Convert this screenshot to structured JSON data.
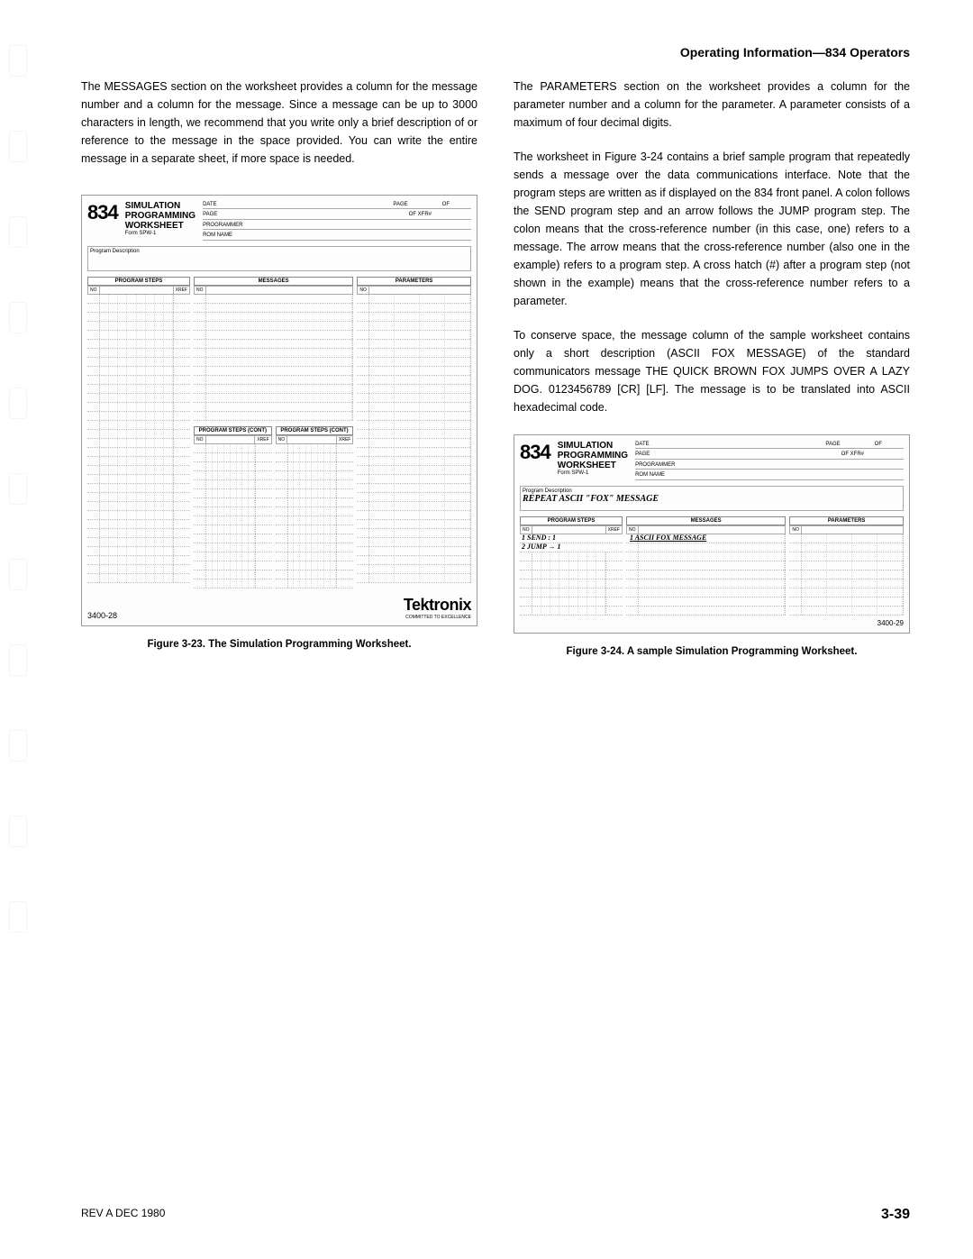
{
  "header": "Operating Information—834 Operators",
  "left_paragraphs": [
    "The MESSAGES section on the worksheet provides a column for the message number and a column for the message. Since a message can be up to 3000 characters in length, we recommend that you write only a brief description of or reference to the message in the space provided. You can write the entire message in a separate sheet, if more space is needed."
  ],
  "right_paragraphs": [
    "The PARAMETERS section on the worksheet provides a column for the parameter number and a column for the parameter. A parameter consists of a maximum of four decimal digits.",
    "The worksheet in Figure 3-24 contains a brief sample program that repeatedly sends a message over the data communications interface. Note that the program steps are written as if displayed on the 834 front panel. A colon follows the SEND program step and an arrow follows the JUMP program step. The colon means that the cross-reference number (in this case, one) refers to a message. The arrow means that the cross-reference number (also one in the example) refers to a program step. A cross hatch (#) after a program step (not shown in the example) means that the cross-reference number refers to a parameter.",
    "To conserve space, the message column of the sample worksheet contains only a short description (ASCII FOX MESSAGE) of the standard communicators message THE QUICK BROWN FOX JUMPS OVER A LAZY DOG. 0123456789 [CR] [LF]. The message is to be translated into ASCII hexadecimal code."
  ],
  "worksheet": {
    "model": "834",
    "title_lines": [
      "SIMULATION",
      "PROGRAMMING",
      "WORKSHEET"
    ],
    "form": "Form SPW-1",
    "meta_labels": {
      "date": "DATE",
      "page": "PAGE",
      "of": "OF",
      "page2": "PAGE",
      "ofxfr": "OF XFR#",
      "programmer": "PROGRAMMER",
      "romname": "ROM NAME"
    },
    "progdesc_label": "Program Description",
    "sections": {
      "steps": "PROGRAM STEPS",
      "messages": "MESSAGES",
      "params": "PARAMETERS",
      "steps_cont": "PROGRAM STEPS (CONT)",
      "no": "NO",
      "xref": "XREF"
    },
    "footer_num": "3400-28",
    "tek": "Tektronix",
    "tek_sub": "COMMITTED TO EXCELLENCE",
    "row_count_main": 32,
    "row_count_lower": 16,
    "tick_count": 8,
    "colors": {
      "border": "#999999",
      "dotted": "#bbbbbb",
      "text": "#000000",
      "bg": "#ffffff"
    }
  },
  "sample": {
    "progdesc_text": "REPEAT ASCII \"FOX\" MESSAGE",
    "steps": [
      "1 SEND     :  1",
      "2 JUMP    →  1"
    ],
    "message": "1  ASCII FOX MESSAGE",
    "footer_num": "3400-29",
    "row_count": 9
  },
  "captions": {
    "left": "Figure 3-23. The Simulation Programming Worksheet.",
    "right": "Figure 3-24. A sample Simulation Programming Worksheet."
  },
  "footer": {
    "rev": "REV A DEC 1980",
    "page": "3-39"
  }
}
